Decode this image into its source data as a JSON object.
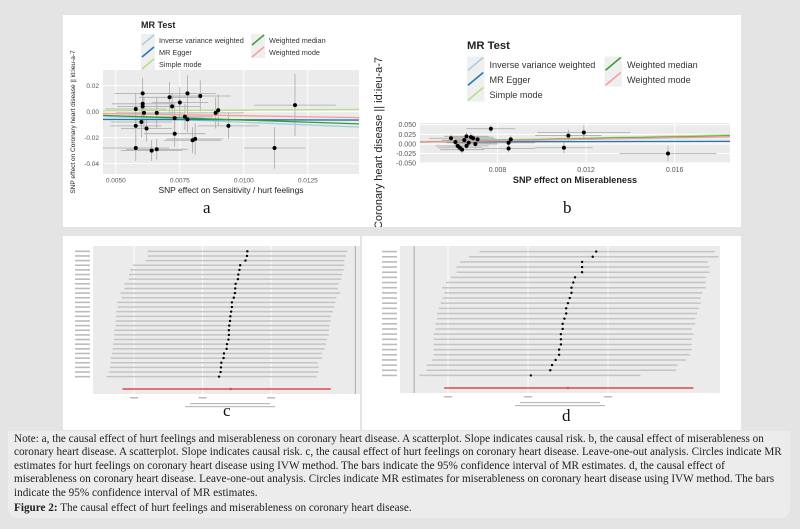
{
  "legend": {
    "title": "MR Test",
    "items": [
      {
        "label": "Inverse variance weighted",
        "color": "#a6cee3"
      },
      {
        "label": "MR Egger",
        "color": "#1f78b4"
      },
      {
        "label": "Simple mode",
        "color": "#b2df8a"
      },
      {
        "label": "Weighted median",
        "color": "#33a02c"
      },
      {
        "label": "Weighted mode",
        "color": "#fb9a99"
      }
    ]
  },
  "chart_data": [
    {
      "id": "a",
      "type": "scatter",
      "panel_label": "a",
      "xlabel": "SNP effect on Sensitivity / hurt feelings",
      "ylabel": "SNP effect on Coronary heart disease || id:ieu-a-7",
      "xlim": [
        0.0045,
        0.0145
      ],
      "ylim": [
        -0.048,
        0.032
      ],
      "xticks": [
        "0.0050",
        "0.0075",
        "0.0100",
        "0.0125"
      ],
      "xtick_values": [
        0.005,
        0.0075,
        0.01,
        0.0125
      ],
      "yticks": [
        "0.02",
        "0.00",
        "-0.02",
        "-0.04"
      ],
      "ytick_values": [
        0.02,
        0,
        -0.02,
        -0.04
      ],
      "points": [
        [
          0.00578,
          0.002,
          0.0012,
          0.012
        ],
        [
          0.00578,
          -0.011,
          0.001,
          0.012
        ],
        [
          0.00578,
          -0.028,
          0.0013,
          0.01
        ],
        [
          0.00605,
          0.014,
          0.0011,
          0.012
        ],
        [
          0.00605,
          0.006,
          0.0012,
          0.01
        ],
        [
          0.00605,
          0.004,
          0.001,
          0.01
        ],
        [
          0.0061,
          -0.001,
          0.0011,
          0.012
        ],
        [
          0.006,
          -0.008,
          0.0012,
          0.012
        ],
        [
          0.0062,
          -0.013,
          0.001,
          0.01
        ],
        [
          0.0064,
          -0.03,
          0.0012,
          0.008
        ],
        [
          0.0066,
          -0.029,
          0.0012,
          0.008
        ],
        [
          0.0066,
          -0.001,
          0.0011,
          0.012
        ],
        [
          0.0071,
          0.011,
          0.0012,
          0.012
        ],
        [
          0.0072,
          0.004,
          0.0011,
          0.01
        ],
        [
          0.0073,
          -0.005,
          0.0011,
          0.012
        ],
        [
          0.0073,
          -0.017,
          0.0012,
          0.01
        ],
        [
          0.0075,
          0.007,
          0.0011,
          0.012
        ],
        [
          0.0077,
          -0.004,
          0.0011,
          0.01
        ],
        [
          0.0078,
          0.014,
          0.0011,
          0.014
        ],
        [
          0.008,
          -0.022,
          0.0011,
          0.01
        ],
        [
          0.0081,
          -0.021,
          0.0011,
          0.012
        ],
        [
          0.0083,
          0.012,
          0.0012,
          0.012
        ],
        [
          0.0089,
          -0.001,
          0.0011,
          0.012
        ],
        [
          0.009,
          0.001,
          0.0012,
          0.012
        ],
        [
          0.0094,
          -0.011,
          0.0012,
          0.01
        ],
        [
          0.0112,
          -0.028,
          0.0012,
          0.016
        ],
        [
          0.012,
          0.005,
          0.0016,
          0.024
        ],
        [
          0.0078,
          -0.006,
          0.0011,
          0.01
        ]
      ],
      "lines": [
        {
          "method": "Inverse variance weighted",
          "slope": -0.82,
          "intercept": 0
        },
        {
          "method": "MR Egger",
          "slope": -0.05,
          "intercept": -0.0058
        },
        {
          "method": "Simple mode",
          "slope": 0.12,
          "intercept": 0
        },
        {
          "method": "Weighted median",
          "slope": -0.65,
          "intercept": 0
        },
        {
          "method": "Weighted mode",
          "slope": -0.32,
          "intercept": 0
        }
      ]
    },
    {
      "id": "b",
      "type": "scatter",
      "panel_label": "b",
      "xlabel": "SNP effect on Miserableness",
      "ylabel": "Coronary heart disease || id:ieu-a-7",
      "xlim": [
        0.0045,
        0.0185
      ],
      "ylim": [
        -0.05,
        0.055
      ],
      "xticks": [
        "0.008",
        "0.012",
        "0.016"
      ],
      "xtick_values": [
        0.008,
        0.012,
        0.016
      ],
      "yticks": [
        "0.050",
        "0.025",
        "0.000",
        "-0.025",
        "-0.050"
      ],
      "ytick_values": [
        0.05,
        0.025,
        0,
        -0.025,
        -0.05
      ],
      "points": [
        [
          0.0059,
          0.015,
          0.001,
          0.01
        ],
        [
          0.0061,
          0.005,
          0.001,
          0.01
        ],
        [
          0.0062,
          -0.005,
          0.001,
          0.01
        ],
        [
          0.0063,
          -0.01,
          0.001,
          0.01
        ],
        [
          0.0064,
          -0.015,
          0.001,
          0.01
        ],
        [
          0.0065,
          0.01,
          0.001,
          0.01
        ],
        [
          0.0066,
          -0.005,
          0.001,
          0.01
        ],
        [
          0.0066,
          0.02,
          0.001,
          0.01
        ],
        [
          0.0067,
          0.003,
          0.001,
          0.01
        ],
        [
          0.0068,
          0.018,
          0.001,
          0.01
        ],
        [
          0.0069,
          0.015,
          0.001,
          0.01
        ],
        [
          0.007,
          0.0,
          0.001,
          0.01
        ],
        [
          0.0071,
          0.012,
          0.001,
          0.01
        ],
        [
          0.0077,
          0.04,
          0.0011,
          0.01
        ],
        [
          0.0085,
          0.003,
          0.0012,
          0.01
        ],
        [
          0.0085,
          -0.012,
          0.0012,
          0.01
        ],
        [
          0.0086,
          0.012,
          0.0012,
          0.01
        ],
        [
          0.011,
          -0.01,
          0.0013,
          0.015
        ],
        [
          0.0112,
          0.022,
          0.0015,
          0.015
        ],
        [
          0.0119,
          0.03,
          0.0021,
          0.02
        ],
        [
          0.0157,
          -0.025,
          0.0022,
          0.02
        ]
      ],
      "lines": [
        {
          "method": "Inverse variance weighted",
          "slope": 1.0,
          "intercept": 0
        },
        {
          "method": "MR Egger",
          "slope": 0.1,
          "intercept": 0.005
        },
        {
          "method": "Simple mode",
          "slope": 1.3,
          "intercept": 0
        },
        {
          "method": "Weighted median",
          "slope": 1.15,
          "intercept": 0
        },
        {
          "method": "Weighted mode",
          "slope": 1.05,
          "intercept": 0
        }
      ]
    },
    {
      "id": "c",
      "type": "forest",
      "panel_label": "c",
      "xlim": [
        -0.695,
        0.031
      ],
      "zero_line": 0,
      "rows": [
        [
          -0.286,
          -0.55,
          -0.022
        ],
        [
          -0.287,
          -0.55,
          -0.025
        ],
        [
          -0.291,
          -0.556,
          -0.029
        ],
        [
          -0.305,
          -0.589,
          -0.029
        ],
        [
          -0.307,
          -0.596,
          -0.031
        ],
        [
          -0.31,
          -0.599,
          -0.035
        ],
        [
          -0.311,
          -0.6,
          -0.037
        ],
        [
          -0.317,
          -0.612,
          -0.044
        ],
        [
          -0.318,
          -0.612,
          -0.046
        ],
        [
          -0.319,
          -0.622,
          -0.04
        ],
        [
          -0.322,
          -0.619,
          -0.05
        ],
        [
          -0.327,
          -0.631,
          -0.053
        ],
        [
          -0.327,
          -0.63,
          -0.056
        ],
        [
          -0.329,
          -0.633,
          -0.059
        ],
        [
          -0.331,
          -0.634,
          -0.065
        ],
        [
          -0.332,
          -0.635,
          -0.065
        ],
        [
          -0.334,
          -0.635,
          -0.068
        ],
        [
          -0.335,
          -0.639,
          -0.07
        ],
        [
          -0.335,
          -0.638,
          -0.07
        ],
        [
          -0.336,
          -0.639,
          -0.075
        ],
        [
          -0.34,
          -0.642,
          -0.078
        ],
        [
          -0.341,
          -0.643,
          -0.081
        ],
        [
          -0.348,
          -0.644,
          -0.088
        ],
        [
          -0.349,
          -0.648,
          -0.088
        ],
        [
          -0.355,
          -0.648,
          -0.1
        ],
        [
          -0.356,
          -0.65,
          -0.097
        ],
        [
          -0.357,
          -0.652,
          -0.097
        ],
        [
          -0.361,
          -0.66,
          -0.102
        ]
      ],
      "overall": [
        -0.33,
        -0.617,
        -0.065
      ]
    },
    {
      "id": "d",
      "type": "forest",
      "panel_label": "d",
      "xlim": [
        -0.08,
        1.73
      ],
      "zero_line": 0,
      "rows": [
        [
          1.03,
          0.37,
          1.7
        ],
        [
          1.01,
          0.31,
          1.72
        ],
        [
          0.95,
          0.26,
          1.66
        ],
        [
          0.95,
          0.24,
          1.67
        ],
        [
          0.95,
          0.24,
          1.67
        ],
        [
          0.91,
          0.21,
          1.65
        ],
        [
          0.9,
          0.18,
          1.65
        ],
        [
          0.89,
          0.16,
          1.65
        ],
        [
          0.89,
          0.17,
          1.63
        ],
        [
          0.88,
          0.16,
          1.62
        ],
        [
          0.87,
          0.15,
          1.62
        ],
        [
          0.86,
          0.14,
          1.61
        ],
        [
          0.86,
          0.13,
          1.6
        ],
        [
          0.85,
          0.13,
          1.59
        ],
        [
          0.84,
          0.12,
          1.59
        ],
        [
          0.84,
          0.12,
          1.57
        ],
        [
          0.83,
          0.11,
          1.58
        ],
        [
          0.83,
          0.11,
          1.57
        ],
        [
          0.83,
          0.11,
          1.57
        ],
        [
          0.82,
          0.11,
          1.57
        ],
        [
          0.82,
          0.11,
          1.56
        ],
        [
          0.8,
          0.1,
          1.54
        ],
        [
          0.78,
          0.07,
          1.49
        ],
        [
          0.77,
          0.07,
          1.48
        ],
        [
          0.66,
          0.03,
          1.28
        ]
      ],
      "overall": [
        0.87,
        0.17,
        1.58
      ]
    }
  ],
  "caption": {
    "note": "Note: a, the causal effect of hurt feelings and miserableness on coronary heart disease. A scatterplot. Slope indicates causal risk. b, the causal effect of miserableness on coronary heart disease. A scatterplot. Slope indicates causal risk. c, the causal effect of hurt feelings on coronary heart disease. Leave-one-out analysis. Circles indicate MR estimates for hurt feelings on coronary heart disease using IVW method. The bars indicate the 95% confidence interval of MR estimates. d, the causal effect of miserableness on coronary heart disease. Leave-one-out analysis. Circles indicate MR estimates for miserableness on coronary heart disease using IVW method. The bars indicate the 95% confidence interval of MR estimates.",
    "figure_label": "Figure 2:",
    "figure_title": "The causal effect of hurt feelings and miserableness on coronary heart disease."
  }
}
